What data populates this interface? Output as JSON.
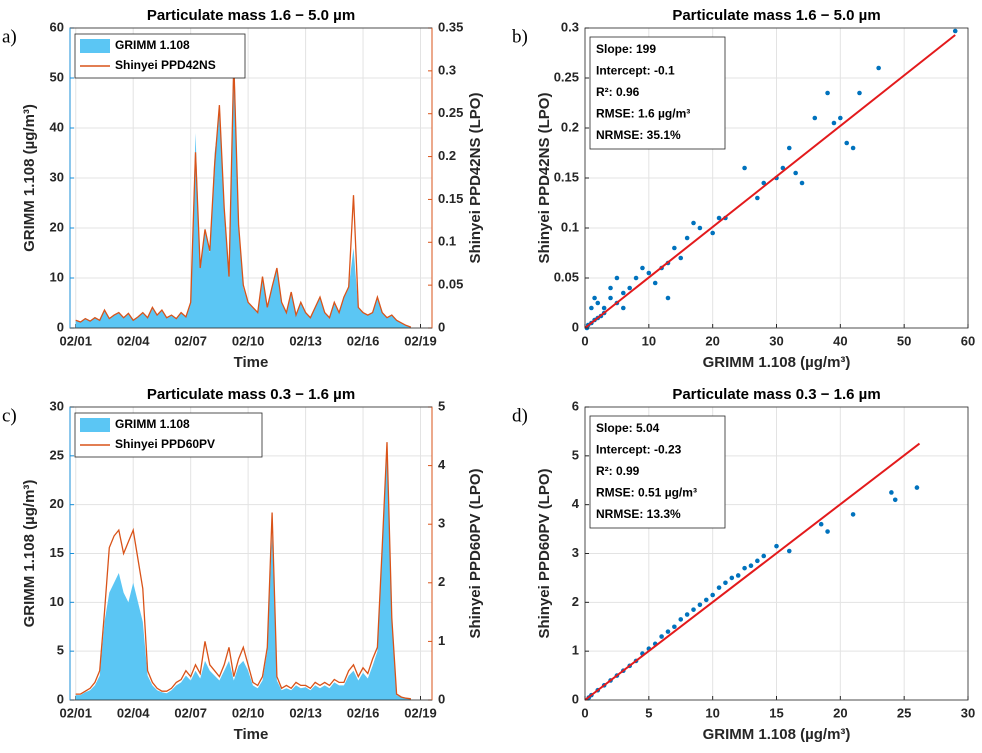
{
  "chart_data": [
    {
      "type": "line",
      "label": "a)",
      "title": "Particulate mass 1.6 − 5.0 µm",
      "xlabel": "Time",
      "ylabel": "GRIMM 1.108 (µg/m³)",
      "y2label": "Shinyei PPD42NS (LPO)",
      "y_axis_color": "#1a8fd8",
      "y2_axis_color": "#d95319",
      "grid": true,
      "legend": "upper left",
      "x": [
        1,
        1.25,
        1.5,
        1.75,
        2,
        2.25,
        2.5,
        2.75,
        3,
        3.25,
        3.5,
        3.75,
        4,
        4.25,
        4.5,
        4.75,
        5,
        5.25,
        5.5,
        5.75,
        6,
        6.25,
        6.5,
        6.75,
        7,
        7.25,
        7.5,
        7.75,
        8,
        8.25,
        8.5,
        8.75,
        9,
        9.25,
        9.5,
        9.75,
        10,
        10.25,
        10.5,
        10.75,
        11,
        11.25,
        11.5,
        11.75,
        12,
        12.25,
        12.5,
        12.75,
        13,
        13.25,
        13.5,
        13.75,
        14,
        14.25,
        14.5,
        14.75,
        15,
        15.25,
        15.5,
        15.75,
        16,
        16.25,
        16.5,
        16.75,
        17,
        17.25,
        17.5,
        17.75,
        18,
        18.25,
        18.5
      ],
      "xlim": [
        0.7,
        19.6
      ],
      "xticks": [
        {
          "value": 1,
          "label": "02/01"
        },
        {
          "value": 4,
          "label": "02/04"
        },
        {
          "value": 7,
          "label": "02/07"
        },
        {
          "value": 10,
          "label": "02/10"
        },
        {
          "value": 13,
          "label": "02/13"
        },
        {
          "value": 16,
          "label": "02/16"
        },
        {
          "value": 19,
          "label": "02/19"
        }
      ],
      "ylim": [
        0,
        60
      ],
      "yticks": [
        0,
        10,
        20,
        30,
        40,
        50,
        60
      ],
      "y2lim": [
        0,
        0.35
      ],
      "y2ticks": [
        0,
        0.05,
        0.1,
        0.15,
        0.2,
        0.25,
        0.3,
        0.35
      ],
      "series": [
        {
          "name": "GRIMM 1.108",
          "color": "#5bc6f4",
          "area": true,
          "values": [
            1.5,
            1.2,
            1.8,
            1.3,
            2,
            1.5,
            3.5,
            1.8,
            2.5,
            3,
            2,
            2.8,
            1.5,
            2.2,
            3,
            2,
            4,
            2.5,
            3.5,
            2,
            2.5,
            1.8,
            3,
            2.2,
            5,
            39,
            12,
            20,
            15,
            35,
            43,
            25,
            10,
            58,
            20,
            8,
            5,
            4,
            3,
            10,
            4,
            8,
            12,
            5,
            3,
            7,
            2.5,
            5,
            3,
            2,
            4,
            6,
            3,
            2,
            5,
            3,
            6,
            8,
            16,
            4,
            3,
            2.5,
            3,
            6,
            3,
            2,
            2.5,
            1.5,
            1,
            0.5,
            0.2
          ]
        },
        {
          "name": "Shinyei PPD42NS",
          "color": "#d95319",
          "axis": "y2",
          "values": [
            0.009,
            0.007,
            0.011,
            0.008,
            0.012,
            0.009,
            0.021,
            0.011,
            0.015,
            0.018,
            0.012,
            0.017,
            0.009,
            0.013,
            0.018,
            0.012,
            0.024,
            0.015,
            0.021,
            0.012,
            0.015,
            0.011,
            0.018,
            0.013,
            0.03,
            0.205,
            0.07,
            0.115,
            0.09,
            0.19,
            0.26,
            0.14,
            0.06,
            0.31,
            0.12,
            0.05,
            0.03,
            0.024,
            0.018,
            0.06,
            0.024,
            0.048,
            0.07,
            0.03,
            0.018,
            0.042,
            0.015,
            0.03,
            0.018,
            0.012,
            0.024,
            0.036,
            0.018,
            0.012,
            0.03,
            0.018,
            0.036,
            0.048,
            0.155,
            0.024,
            0.018,
            0.015,
            0.018,
            0.036,
            0.018,
            0.012,
            0.015,
            0.009,
            0.006,
            0.003,
            0.001
          ]
        }
      ]
    },
    {
      "type": "scatter",
      "label": "b)",
      "title": "Particulate mass 1.6 − 5.0 µm",
      "xlabel": "GRIMM 1.108 (µg/m³)",
      "ylabel": "Shinyei PPD42NS (LPO)",
      "grid": true,
      "color": "#0072bd",
      "stats": [
        "Slope: 199",
        "Intercept: -0.1",
        "R²: 0.96",
        "RMSE: 1.6 µg/m³",
        "NRMSE: 35.1%"
      ],
      "xlim": [
        0,
        60
      ],
      "xticks": [
        0,
        10,
        20,
        30,
        40,
        50,
        60
      ],
      "ylim": [
        0,
        0.3
      ],
      "yticks": [
        0,
        0.05,
        0.1,
        0.15,
        0.2,
        0.25,
        0.3
      ],
      "x": [
        0.5,
        1,
        1.5,
        2,
        2.5,
        3,
        1,
        2,
        3,
        4,
        5,
        4,
        6,
        5,
        7,
        8,
        9,
        10,
        11,
        12,
        13,
        14,
        15,
        16,
        17,
        18,
        20,
        21,
        22,
        25,
        27,
        28,
        30,
        31,
        32,
        33,
        34,
        36,
        38,
        39,
        40,
        41,
        42,
        43,
        46,
        58,
        0.3,
        1.5,
        6,
        13
      ],
      "values": [
        0.003,
        0.005,
        0.008,
        0.01,
        0.012,
        0.015,
        0.02,
        0.025,
        0.02,
        0.03,
        0.025,
        0.04,
        0.035,
        0.05,
        0.04,
        0.05,
        0.06,
        0.055,
        0.045,
        0.06,
        0.065,
        0.08,
        0.07,
        0.09,
        0.105,
        0.1,
        0.095,
        0.11,
        0.11,
        0.16,
        0.13,
        0.145,
        0.15,
        0.16,
        0.18,
        0.155,
        0.145,
        0.21,
        0.235,
        0.205,
        0.21,
        0.185,
        0.18,
        0.235,
        0.26,
        0.297,
        0,
        0.03,
        0.02,
        0.03
      ],
      "fit": {
        "color": "#e31a1c",
        "x": [
          0,
          58
        ],
        "values": [
          0,
          0.293
        ]
      }
    },
    {
      "type": "line",
      "label": "c)",
      "title": "Particulate mass 0.3 − 1.6 µm",
      "xlabel": "Time",
      "ylabel": "GRIMM 1.108 (µg/m³)",
      "y2label": "Shinyei PPD60PV (LPO)",
      "y_axis_color": "#1a8fd8",
      "y2_axis_color": "#d95319",
      "grid": true,
      "legend": "upper left",
      "x": [
        1,
        1.25,
        1.5,
        1.75,
        2,
        2.25,
        2.5,
        2.75,
        3,
        3.25,
        3.5,
        3.75,
        4,
        4.25,
        4.5,
        4.75,
        5,
        5.25,
        5.5,
        5.75,
        6,
        6.25,
        6.5,
        6.75,
        7,
        7.25,
        7.5,
        7.75,
        8,
        8.25,
        8.5,
        8.75,
        9,
        9.25,
        9.5,
        9.75,
        10,
        10.25,
        10.5,
        10.75,
        11,
        11.25,
        11.5,
        11.75,
        12,
        12.25,
        12.5,
        12.75,
        13,
        13.25,
        13.5,
        13.75,
        14,
        14.25,
        14.5,
        14.75,
        15,
        15.25,
        15.5,
        15.75,
        16,
        16.25,
        16.5,
        16.75,
        17,
        17.25,
        17.5,
        17.75,
        18,
        18.25,
        18.5
      ],
      "xlim": [
        0.7,
        19.6
      ],
      "xticks": [
        {
          "value": 1,
          "label": "02/01"
        },
        {
          "value": 4,
          "label": "02/04"
        },
        {
          "value": 7,
          "label": "02/07"
        },
        {
          "value": 10,
          "label": "02/10"
        },
        {
          "value": 13,
          "label": "02/13"
        },
        {
          "value": 16,
          "label": "02/16"
        },
        {
          "value": 19,
          "label": "02/19"
        }
      ],
      "ylim": [
        0,
        30
      ],
      "yticks": [
        0,
        5,
        10,
        15,
        20,
        25,
        30
      ],
      "y2lim": [
        0,
        5
      ],
      "y2ticks": [
        0,
        1,
        2,
        3,
        4,
        5
      ],
      "series": [
        {
          "name": "GRIMM 1.108",
          "color": "#5bc6f4",
          "area": true,
          "values": [
            0.5,
            0.5,
            0.8,
            1,
            1.5,
            2.5,
            8,
            11,
            12,
            13,
            11,
            10,
            12,
            10,
            8,
            2.5,
            1.5,
            1,
            0.8,
            0.7,
            1,
            1.5,
            1.8,
            2.5,
            2,
            3,
            2.2,
            4,
            3,
            2.5,
            2,
            3,
            4,
            2,
            3.5,
            4,
            3,
            1.5,
            1.2,
            2,
            5,
            17,
            2,
            1,
            1.2,
            1,
            1.5,
            1.2,
            1.3,
            1,
            1.5,
            1.2,
            1.5,
            1.2,
            1.8,
            1.5,
            1.5,
            2.5,
            3,
            2,
            2.8,
            2.2,
            3.5,
            5,
            15,
            26,
            8,
            0.5,
            0.3,
            0.2,
            0.1
          ]
        },
        {
          "name": "Shinyei PPD60PV",
          "color": "#d95319",
          "axis": "y2",
          "values": [
            0.1,
            0.1,
            0.15,
            0.2,
            0.3,
            0.5,
            1.5,
            2.6,
            2.8,
            2.9,
            2.5,
            2.7,
            2.9,
            2.4,
            1.9,
            0.5,
            0.3,
            0.2,
            0.15,
            0.15,
            0.2,
            0.3,
            0.35,
            0.5,
            0.4,
            0.6,
            0.45,
            1,
            0.6,
            0.5,
            0.4,
            0.6,
            0.9,
            0.4,
            0.7,
            0.9,
            0.6,
            0.3,
            0.25,
            0.4,
            0.9,
            3.2,
            0.4,
            0.2,
            0.25,
            0.2,
            0.3,
            0.25,
            0.25,
            0.2,
            0.3,
            0.25,
            0.3,
            0.25,
            0.35,
            0.3,
            0.3,
            0.5,
            0.6,
            0.4,
            0.55,
            0.45,
            0.7,
            0.9,
            2.6,
            4.4,
            1.4,
            0.1,
            0.05,
            0.03,
            0.02
          ]
        }
      ]
    },
    {
      "type": "scatter",
      "label": "d)",
      "title": "Particulate mass 0.3 − 1.6 µm",
      "xlabel": "GRIMM 1.108 (µg/m³)",
      "ylabel": "Shinyei PPD60PV (LPO)",
      "grid": true,
      "color": "#0072bd",
      "stats": [
        "Slope: 5.04",
        "Intercept: -0.23",
        "R²: 0.99",
        "RMSE: 0.51 µg/m³",
        "NRMSE: 13.3%"
      ],
      "xlim": [
        0,
        30
      ],
      "xticks": [
        0,
        5,
        10,
        15,
        20,
        25,
        30
      ],
      "ylim": [
        0,
        6
      ],
      "yticks": [
        0,
        1,
        2,
        3,
        4,
        5,
        6
      ],
      "x": [
        0.3,
        0.5,
        1,
        1.5,
        2,
        2.5,
        3,
        3.5,
        4,
        4.5,
        5,
        5.5,
        6,
        6.5,
        7,
        7.5,
        8,
        8.5,
        9,
        9.5,
        10,
        10.5,
        11,
        11.5,
        12,
        12.5,
        13,
        13.5,
        14,
        15,
        16,
        18.5,
        19,
        21,
        24,
        24.3,
        26
      ],
      "values": [
        0.05,
        0.1,
        0.2,
        0.3,
        0.4,
        0.5,
        0.6,
        0.7,
        0.8,
        0.95,
        1.05,
        1.15,
        1.3,
        1.4,
        1.5,
        1.65,
        1.75,
        1.85,
        1.95,
        2.05,
        2.15,
        2.3,
        2.4,
        2.5,
        2.55,
        2.7,
        2.75,
        2.85,
        2.95,
        3.15,
        3.05,
        3.6,
        3.45,
        3.8,
        4.25,
        4.1,
        4.35
      ],
      "fit": {
        "color": "#e31a1c",
        "x": [
          0,
          26.2
        ],
        "values": [
          0,
          5.25
        ]
      }
    }
  ]
}
